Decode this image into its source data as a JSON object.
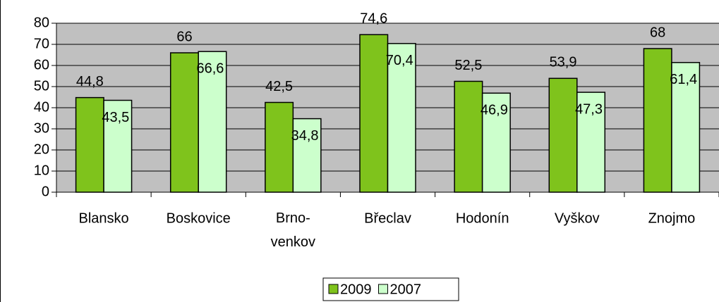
{
  "chart_data": {
    "type": "bar",
    "categories": [
      "Blansko",
      "Boskovice",
      "Brno-venkov",
      "Břeclav",
      "Hodonín",
      "Vyškov",
      "Znojmo"
    ],
    "series": [
      {
        "name": "2009",
        "color": "#7fc31c",
        "values": [
          44.8,
          66,
          42.5,
          74.6,
          52.5,
          53.9,
          68
        ],
        "value_labels": [
          "44,8",
          "66",
          "42,5",
          "74,6",
          "52,5",
          "53,9",
          "68"
        ]
      },
      {
        "name": "2007",
        "color": "#ccffcc",
        "values": [
          43.5,
          66.6,
          34.8,
          70.4,
          46.9,
          47.3,
          61.4
        ],
        "value_labels": [
          "43,5",
          "66,6",
          "34,8",
          "70,4",
          "46,9",
          "47,3",
          "61,4"
        ]
      }
    ],
    "ylim": [
      0,
      80
    ],
    "yticks": [
      0,
      10,
      20,
      30,
      40,
      50,
      60,
      70,
      80
    ],
    "grid": true,
    "legend": "bottom"
  }
}
